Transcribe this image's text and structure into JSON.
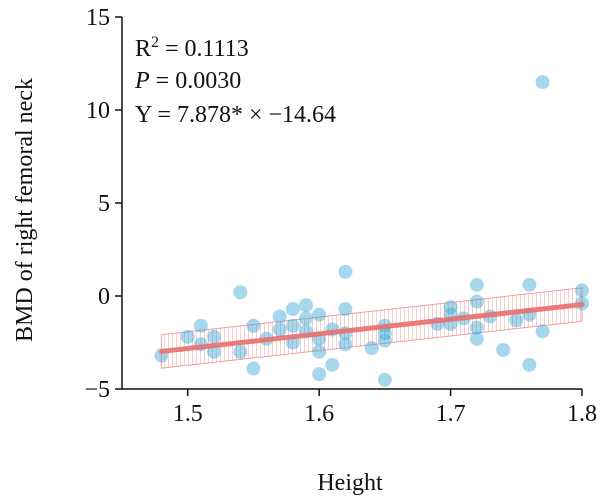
{
  "colors": {
    "points": "#3aa7d8",
    "fit_line": "#e8706e",
    "ci_band": "#f08c8a",
    "axis": "#111111"
  },
  "chart_data": {
    "type": "scatter",
    "xlabel": "Height",
    "ylabel": "BMD of right femoral neck",
    "xlim": [
      1.45,
      1.8
    ],
    "ylim": [
      -5,
      15
    ],
    "xticks": [
      "1.5",
      "1.6",
      "1.7",
      "1.8"
    ],
    "yticks": [
      "−5",
      "0",
      "5",
      "10",
      "15"
    ],
    "grid": false,
    "annotations": {
      "r2_prefix": "R",
      "r2_sup": "2",
      "r2_value": " = 0.1113",
      "p_label": "P",
      "p_value": " = 0.0030",
      "equation": "Y = 7.878* × −14.64"
    },
    "fit": {
      "slope": 7.878,
      "intercept": -14.64,
      "x_range": [
        1.48,
        1.8
      ]
    },
    "points": [
      {
        "x": 1.48,
        "y": -3.2
      },
      {
        "x": 1.5,
        "y": -2.2
      },
      {
        "x": 1.51,
        "y": -1.6
      },
      {
        "x": 1.51,
        "y": -2.6
      },
      {
        "x": 1.52,
        "y": -2.2
      },
      {
        "x": 1.52,
        "y": -3.0
      },
      {
        "x": 1.54,
        "y": 0.2
      },
      {
        "x": 1.54,
        "y": -3.0
      },
      {
        "x": 1.55,
        "y": -1.6
      },
      {
        "x": 1.55,
        "y": -3.9
      },
      {
        "x": 1.56,
        "y": -2.3
      },
      {
        "x": 1.57,
        "y": -1.8
      },
      {
        "x": 1.57,
        "y": -1.1
      },
      {
        "x": 1.58,
        "y": -0.7
      },
      {
        "x": 1.58,
        "y": -1.6
      },
      {
        "x": 1.58,
        "y": -2.5
      },
      {
        "x": 1.59,
        "y": -0.5
      },
      {
        "x": 1.59,
        "y": -1.2
      },
      {
        "x": 1.59,
        "y": -1.9
      },
      {
        "x": 1.6,
        "y": -1.0
      },
      {
        "x": 1.6,
        "y": -2.3
      },
      {
        "x": 1.6,
        "y": -3.0
      },
      {
        "x": 1.6,
        "y": -4.2
      },
      {
        "x": 1.61,
        "y": -1.8
      },
      {
        "x": 1.61,
        "y": -3.7
      },
      {
        "x": 1.62,
        "y": 1.3
      },
      {
        "x": 1.62,
        "y": -0.7
      },
      {
        "x": 1.62,
        "y": -2.0
      },
      {
        "x": 1.62,
        "y": -2.6
      },
      {
        "x": 1.64,
        "y": -2.8
      },
      {
        "x": 1.65,
        "y": -1.6
      },
      {
        "x": 1.65,
        "y": -2.0
      },
      {
        "x": 1.65,
        "y": -2.4
      },
      {
        "x": 1.65,
        "y": -4.5
      },
      {
        "x": 1.69,
        "y": -1.5
      },
      {
        "x": 1.7,
        "y": -0.6
      },
      {
        "x": 1.7,
        "y": -1.0
      },
      {
        "x": 1.7,
        "y": -1.5
      },
      {
        "x": 1.71,
        "y": -1.2
      },
      {
        "x": 1.72,
        "y": 0.6
      },
      {
        "x": 1.72,
        "y": -0.3
      },
      {
        "x": 1.72,
        "y": -1.7
      },
      {
        "x": 1.72,
        "y": -2.3
      },
      {
        "x": 1.73,
        "y": -1.1
      },
      {
        "x": 1.74,
        "y": -2.9
      },
      {
        "x": 1.75,
        "y": -1.3
      },
      {
        "x": 1.76,
        "y": 0.6
      },
      {
        "x": 1.76,
        "y": -1.0
      },
      {
        "x": 1.76,
        "y": -3.7
      },
      {
        "x": 1.77,
        "y": 11.5
      },
      {
        "x": 1.77,
        "y": -1.9
      },
      {
        "x": 1.8,
        "y": 0.3
      },
      {
        "x": 1.8,
        "y": -0.4
      }
    ]
  }
}
